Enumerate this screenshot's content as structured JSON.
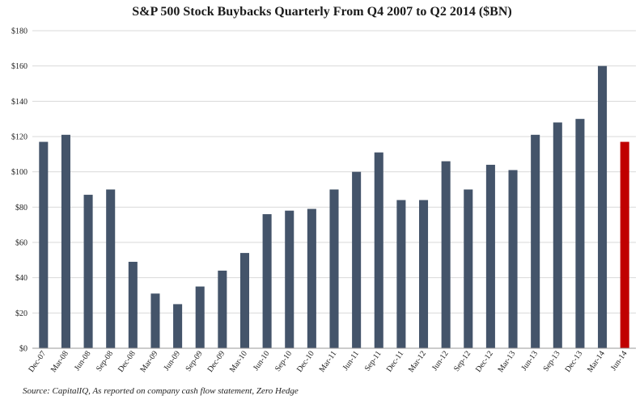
{
  "chart_data": {
    "type": "bar",
    "title": "S&P 500 Stock Buybacks Quarterly From Q4 2007 to Q2 2014 ($BN)",
    "source": "Source: CapitalIQ, As reported on company cash flow statement, Zero Hedge",
    "categories": [
      "Dec-07",
      "Mar-08",
      "Jun-08",
      "Sep-08",
      "Dec-08",
      "Mar-09",
      "Jun-09",
      "Sep-09",
      "Dec-09",
      "Mar-10",
      "Jun-10",
      "Sep-10",
      "Dec-10",
      "Mar-11",
      "Jun-11",
      "Sep-11",
      "Dec-11",
      "Mar-12",
      "Jun-12",
      "Sep-12",
      "Dec-12",
      "Mar-13",
      "Jun-13",
      "Sep-13",
      "Dec-13",
      "Mar-14",
      "Jun-14"
    ],
    "values": [
      117,
      121,
      87,
      90,
      49,
      31,
      25,
      35,
      44,
      54,
      76,
      78,
      79,
      90,
      100,
      111,
      84,
      84,
      106,
      90,
      104,
      101,
      121,
      128,
      130,
      160,
      117
    ],
    "highlight_index": 26,
    "bar_color": "#44546a",
    "highlight_color": "#c00000",
    "ylim": [
      0,
      180
    ],
    "yticks": [
      "$0",
      "$20",
      "$40",
      "$60",
      "$80",
      "$100",
      "$120",
      "$140",
      "$160",
      "$180"
    ],
    "ytick_values": [
      0,
      20,
      40,
      60,
      80,
      100,
      120,
      140,
      160,
      180
    ],
    "grid": true,
    "xlabel": "",
    "ylabel": ""
  }
}
